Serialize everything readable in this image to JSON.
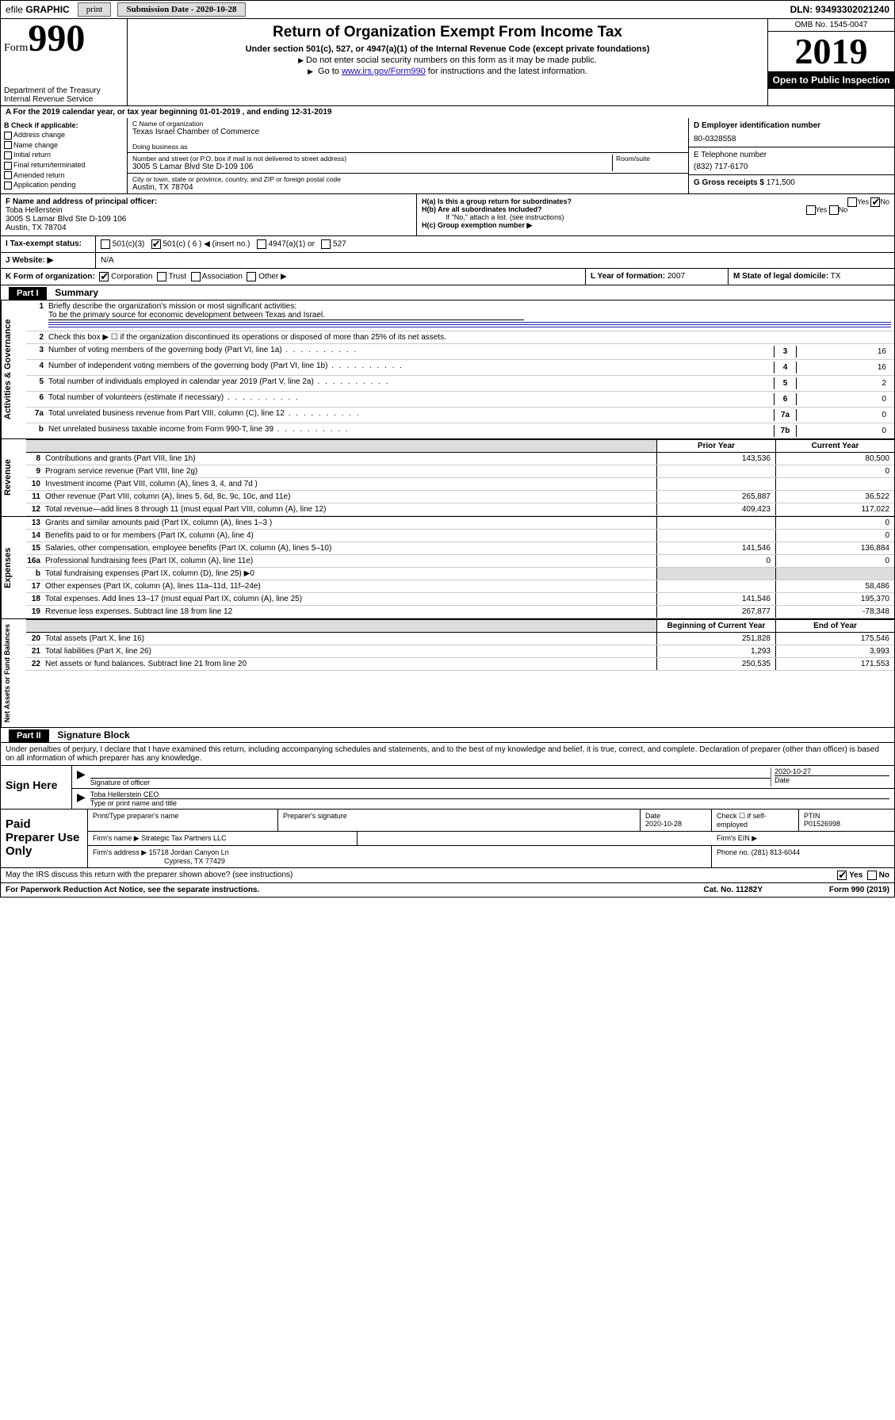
{
  "topbar": {
    "efile_prefix": "efile",
    "efile_label": "GRAPHIC",
    "print": "print",
    "submission_date_label": "Submission Date - 2020-10-28",
    "dln": "DLN: 93493302021240"
  },
  "header": {
    "form_label": "Form",
    "form_number": "990",
    "dept": "Department of the Treasury\nInternal Revenue Service",
    "title": "Return of Organization Exempt From Income Tax",
    "subtitle": "Under section 501(c), 527, or 4947(a)(1) of the Internal Revenue Code (except private foundations)",
    "note1": "Do not enter social security numbers on this form as it may be made public.",
    "note2_pre": "Go to ",
    "note2_link": "www.irs.gov/Form990",
    "note2_post": " for instructions and the latest information.",
    "omb": "OMB No. 1545-0047",
    "year": "2019",
    "open_public": "Open to Public Inspection"
  },
  "taxyear": "For the 2019 calendar year, or tax year beginning 01-01-2019    , and ending 12-31-2019",
  "box_b": {
    "label": "B Check if applicable:",
    "opts": [
      "Address change",
      "Name change",
      "Initial return",
      "Final return/terminated",
      "Amended return",
      "Application pending"
    ]
  },
  "box_c": {
    "name_label": "C Name of organization",
    "name": "Texas Israel Chamber of Commerce",
    "dba_label": "Doing business as",
    "addr_label": "Number and street (or P.O. box if mail is not delivered to street address)",
    "room_label": "Room/suite",
    "addr": "3005 S Lamar Blvd Ste D-109 106",
    "city_label": "City or town, state or province, country, and ZIP or foreign postal code",
    "city": "Austin, TX  78704"
  },
  "box_d": {
    "label": "D Employer identification number",
    "ein": "80-0328558",
    "tel_label": "E Telephone number",
    "tel": "(832) 717-6170",
    "gross_label": "G Gross receipts $",
    "gross": "171,500"
  },
  "box_f": {
    "label": "F  Name and address of principal officer:",
    "name": "Toba Hellerstein",
    "addr1": "3005 S Lamar Blvd Ste D-109 106",
    "addr2": "Austin, TX  78704"
  },
  "box_h": {
    "ha": "H(a)  Is this a group return for subordinates?",
    "hb": "H(b)  Are all subordinates included?",
    "hb_note": "If \"No,\" attach a list. (see instructions)",
    "hc": "H(c)  Group exemption number ▶",
    "yes": "Yes",
    "no": "No"
  },
  "box_i": {
    "label": "Tax-exempt status:",
    "opts": [
      "501(c)(3)",
      "501(c) ( 6 ) ◀ (insert no.)",
      "4947(a)(1) or",
      "527"
    ],
    "checked": 1
  },
  "box_j": {
    "label": "J   Website: ▶",
    "val": "N/A"
  },
  "box_k": {
    "label": "K Form of organization:",
    "opts": [
      "Corporation",
      "Trust",
      "Association",
      "Other ▶"
    ],
    "checked": 0
  },
  "box_l": {
    "label": "L Year of formation:",
    "val": "2007"
  },
  "box_m": {
    "label": "M State of legal domicile:",
    "val": "TX"
  },
  "part1_label": "Part I",
  "part1_title": "Summary",
  "tabs": {
    "gov": "Activities & Governance",
    "rev": "Revenue",
    "exp": "Expenses",
    "net": "Net Assets or Fund Balances"
  },
  "lines": {
    "l1": "Briefly describe the organization's mission or most significant activities:",
    "l1_val": "To be the primary source for economic development between Texas and Israel.",
    "l2": "Check this box ▶ ☐  if the organization discontinued its operations or disposed of more than 25% of its net assets.",
    "l3": "Number of voting members of the governing body (Part VI, line 1a)",
    "l4": "Number of independent voting members of the governing body (Part VI, line 1b)",
    "l5": "Total number of individuals employed in calendar year 2019 (Part V, line 2a)",
    "l6": "Total number of volunteers (estimate if necessary)",
    "l7a": "Total unrelated business revenue from Part VIII, column (C), line 12",
    "l7b": "Net unrelated business taxable income from Form 990-T, line 39",
    "v3": "16",
    "v4": "16",
    "v5": "2",
    "v6": "0",
    "v7a": "0",
    "v7b": "0"
  },
  "fin_headers": {
    "prior": "Prior Year",
    "current": "Current Year",
    "boy": "Beginning of Current Year",
    "eoy": "End of Year"
  },
  "revenue": [
    {
      "n": "8",
      "d": "Contributions and grants (Part VIII, line 1h)",
      "p": "143,536",
      "c": "80,500"
    },
    {
      "n": "9",
      "d": "Program service revenue (Part VIII, line 2g)",
      "p": "",
      "c": "0"
    },
    {
      "n": "10",
      "d": "Investment income (Part VIII, column (A), lines 3, 4, and 7d )",
      "p": "",
      "c": ""
    },
    {
      "n": "11",
      "d": "Other revenue (Part VIII, column (A), lines 5, 6d, 8c, 9c, 10c, and 11e)",
      "p": "265,887",
      "c": "36,522"
    },
    {
      "n": "12",
      "d": "Total revenue—add lines 8 through 11 (must equal Part VIII, column (A), line 12)",
      "p": "409,423",
      "c": "117,022"
    }
  ],
  "expenses": [
    {
      "n": "13",
      "d": "Grants and similar amounts paid (Part IX, column (A), lines 1–3 )",
      "p": "",
      "c": "0"
    },
    {
      "n": "14",
      "d": "Benefits paid to or for members (Part IX, column (A), line 4)",
      "p": "",
      "c": "0"
    },
    {
      "n": "15",
      "d": "Salaries, other compensation, employee benefits (Part IX, column (A), lines 5–10)",
      "p": "141,546",
      "c": "136,884"
    },
    {
      "n": "16a",
      "d": "Professional fundraising fees (Part IX, column (A), line 11e)",
      "p": "0",
      "c": "0"
    },
    {
      "n": "b",
      "d": "Total fundraising expenses (Part IX, column (D), line 25) ▶0",
      "p": null,
      "c": null
    },
    {
      "n": "17",
      "d": "Other expenses (Part IX, column (A), lines 11a–11d, 11f–24e)",
      "p": "",
      "c": "58,486"
    },
    {
      "n": "18",
      "d": "Total expenses. Add lines 13–17 (must equal Part IX, column (A), line 25)",
      "p": "141,546",
      "c": "195,370"
    },
    {
      "n": "19",
      "d": "Revenue less expenses. Subtract line 18 from line 12",
      "p": "267,877",
      "c": "-78,348"
    }
  ],
  "netassets": [
    {
      "n": "20",
      "d": "Total assets (Part X, line 16)",
      "p": "251,828",
      "c": "175,546"
    },
    {
      "n": "21",
      "d": "Total liabilities (Part X, line 26)",
      "p": "1,293",
      "c": "3,993"
    },
    {
      "n": "22",
      "d": "Net assets or fund balances. Subtract line 21 from line 20",
      "p": "250,535",
      "c": "171,553"
    }
  ],
  "part2_label": "Part II",
  "part2_title": "Signature Block",
  "perjury": "Under penalties of perjury, I declare that I have examined this return, including accompanying schedules and statements, and to the best of my knowledge and belief, it is true, correct, and complete. Declaration of preparer (other than officer) is based on all information of which preparer has any knowledge.",
  "sign": {
    "here": "Sign Here",
    "sig_label": "Signature of officer",
    "date_label": "Date",
    "date": "2020-10-27",
    "name": "Toba Hellerstein CEO",
    "name_label": "Type or print name and title"
  },
  "preparer": {
    "label": "Paid Preparer Use Only",
    "h_name": "Print/Type preparer's name",
    "h_sig": "Preparer's signature",
    "h_date": "Date",
    "date": "2020-10-28",
    "check_label": "Check ☐ if self-employed",
    "ptin_label": "PTIN",
    "ptin": "P01526998",
    "firm_name_label": "Firm's name    ▶",
    "firm_name": "Strategic Tax Partners LLC",
    "firm_ein_label": "Firm's EIN ▶",
    "firm_addr_label": "Firm's address ▶",
    "firm_addr1": "15718 Jordan Canyon Ln",
    "firm_addr2": "Cypress, TX  77429",
    "phone_label": "Phone no.",
    "phone": "(281) 813-6044"
  },
  "discuss": {
    "text": "May the IRS discuss this return with the preparer shown above? (see instructions)",
    "yes": "Yes",
    "no": "No"
  },
  "footer": {
    "pra": "For Paperwork Reduction Act Notice, see the separate instructions.",
    "cat": "Cat. No. 11282Y",
    "form": "Form 990 (2019)"
  }
}
